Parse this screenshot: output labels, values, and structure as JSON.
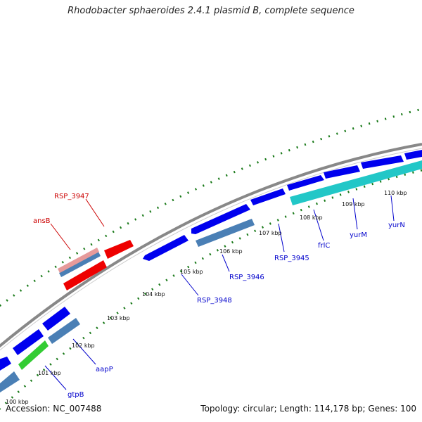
{
  "title": "Rhodobacter sphaeroides 2.4.1 plasmid B, complete sequence",
  "accession_text": "Accession: NC_007488",
  "summary_text": "Topology: circular; Length: 114,178 bp; Genes: 100",
  "colors": {
    "forward_gene": "#0000ee",
    "reverse_gene": "#4a7fb5",
    "rna_gene": "#e6c0c0",
    "red_gene": "#ee0000",
    "cyan_gene": "#22c7c7",
    "green_gene": "#33cc33",
    "backbone": "#888888",
    "tick": "#1a7a1a",
    "forward_label": "#0000cc",
    "reverse_label": "#cc0000"
  },
  "kbp_labels": [
    "100 kbp",
    "101 kbp",
    "102 kbp",
    "103 kbp",
    "104 kbp",
    "105 kbp",
    "106 kbp",
    "107 kbp",
    "108 kbp",
    "109 kbp",
    "110 kbp"
  ],
  "gene_labels": {
    "rsp3947": "RSP_3947",
    "ansB": "ansB",
    "rsp3948": "RSP_3948",
    "rsp3946": "RSP_3946",
    "rsp3945": "RSP_3945",
    "frlC": "frlC",
    "yurM": "yurM",
    "yurN": "yurN",
    "aapP": "aapP",
    "gtpB": "gtpB"
  }
}
